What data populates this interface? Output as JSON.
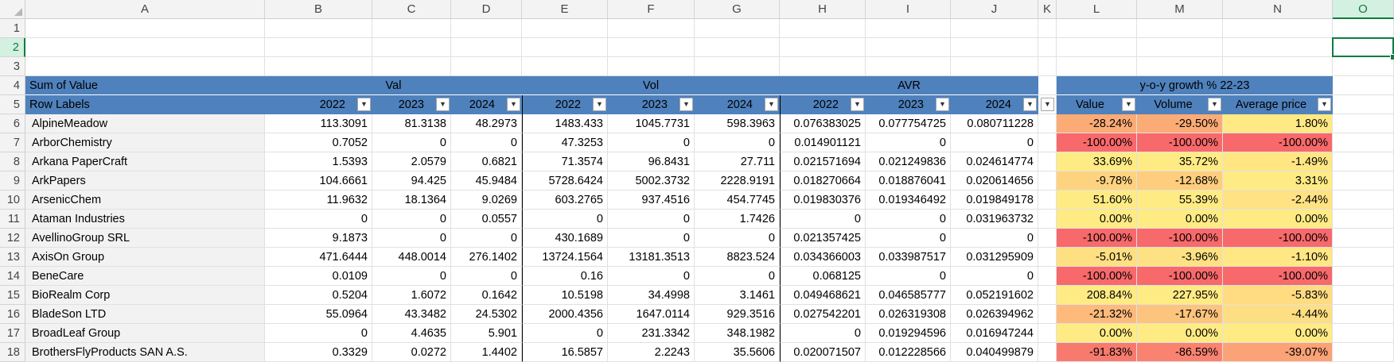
{
  "columns": [
    "A",
    "B",
    "C",
    "D",
    "E",
    "F",
    "G",
    "H",
    "I",
    "J",
    "K",
    "L",
    "M",
    "N",
    "O"
  ],
  "selected_column": "O",
  "selected_row": 2,
  "empty_rows": [
    1,
    2,
    3
  ],
  "pivot": {
    "corner_label": "Sum of Value",
    "row_labels_header": "Row Labels",
    "groups": {
      "val": "Val",
      "vol": "Vol",
      "avr": "AVR",
      "growth": "y-o-y growth % 22-23"
    },
    "years": [
      "2022",
      "2023",
      "2024",
      "2022",
      "2023",
      "2024",
      "2022",
      "2023",
      "2024"
    ],
    "growth_headers": [
      "Value",
      "Volume",
      "Average price"
    ],
    "filter_icon": "dropdown-arrow-icon",
    "rows": [
      {
        "n": "6",
        "label": "AlpineMeadow",
        "v": [
          "113.3091",
          "81.3138",
          "48.2973",
          "1483.433",
          "1045.7731",
          "598.3963",
          "0.076383025",
          "0.077754725",
          "0.080711228"
        ],
        "g": [
          "-28.24%",
          "-29.50%",
          "1.80%"
        ],
        "gc": [
          "#fbab76",
          "#fbab76",
          "#ffe984"
        ]
      },
      {
        "n": "7",
        "label": "ArborChemistry",
        "v": [
          "0.7052",
          "0",
          "0",
          "47.3253",
          "0",
          "0",
          "0.014901121",
          "0",
          "0"
        ],
        "g": [
          "-100.00%",
          "-100.00%",
          "-100.00%"
        ],
        "gc": [
          "#f8696b",
          "#f8696b",
          "#f8696b"
        ]
      },
      {
        "n": "8",
        "label": "Arkana PaperCraft",
        "v": [
          "1.5393",
          "2.0579",
          "0.6821",
          "71.3574",
          "96.8431",
          "27.711",
          "0.021571694",
          "0.021249836",
          "0.024614774"
        ],
        "g": [
          "33.69%",
          "35.72%",
          "-1.49%"
        ],
        "gc": [
          "#ffeb84",
          "#ffeb84",
          "#ffe683"
        ]
      },
      {
        "n": "9",
        "label": "ArkPapers",
        "v": [
          "104.6661",
          "94.425",
          "45.9484",
          "5728.6424",
          "5002.3732",
          "2228.9191",
          "0.018270664",
          "0.018876041",
          "0.020614656"
        ],
        "g": [
          "-9.78%",
          "-12.68%",
          "3.31%"
        ],
        "gc": [
          "#fed380",
          "#fecd7e",
          "#ffeb84"
        ]
      },
      {
        "n": "10",
        "label": "ArsenicChem",
        "v": [
          "11.9632",
          "18.1364",
          "9.0269",
          "603.2765",
          "937.4516",
          "454.7745",
          "0.019830376",
          "0.019346492",
          "0.019849178"
        ],
        "g": [
          "51.60%",
          "55.39%",
          "-2.44%"
        ],
        "gc": [
          "#ffeb84",
          "#ffeb84",
          "#ffe283"
        ]
      },
      {
        "n": "11",
        "label": "Ataman Industries",
        "v": [
          "0",
          "0",
          "0.0557",
          "0",
          "0",
          "1.7426",
          "0",
          "0",
          "0.031963732"
        ],
        "g": [
          "0.00%",
          "0.00%",
          "0.00%"
        ],
        "gc": [
          "#ffeb84",
          "#ffeb84",
          "#ffeb84"
        ]
      },
      {
        "n": "12",
        "label": "AvellinoGroup SRL",
        "v": [
          "9.1873",
          "0",
          "0",
          "430.1689",
          "0",
          "0",
          "0.021357425",
          "0",
          "0"
        ],
        "g": [
          "-100.00%",
          "-100.00%",
          "-100.00%"
        ],
        "gc": [
          "#f8696b",
          "#f8696b",
          "#f8696b"
        ]
      },
      {
        "n": "13",
        "label": "AxisOn Group",
        "v": [
          "471.6444",
          "448.0014",
          "276.1402",
          "13724.1564",
          "13181.3513",
          "8823.524",
          "0.034366003",
          "0.033987517",
          "0.031295909"
        ],
        "g": [
          "-5.01%",
          "-3.96%",
          "-1.10%"
        ],
        "gc": [
          "#fedf82",
          "#fee182",
          "#ffe783"
        ]
      },
      {
        "n": "14",
        "label": "BeneCare",
        "v": [
          "0.0109",
          "0",
          "0",
          "0.16",
          "0",
          "0",
          "0.068125",
          "0",
          "0"
        ],
        "g": [
          "-100.00%",
          "-100.00%",
          "-100.00%"
        ],
        "gc": [
          "#f8696b",
          "#f8696b",
          "#f8696b"
        ]
      },
      {
        "n": "15",
        "label": "BioRealm Corp",
        "v": [
          "0.5204",
          "1.6072",
          "0.1642",
          "10.5198",
          "34.4998",
          "3.1461",
          "0.049468621",
          "0.046585777",
          "0.052191602"
        ],
        "g": [
          "208.84%",
          "227.95%",
          "-5.83%"
        ],
        "gc": [
          "#ffeb84",
          "#ffeb84",
          "#ffdc81"
        ]
      },
      {
        "n": "16",
        "label": "BladeSon LTD",
        "v": [
          "55.0964",
          "43.3482",
          "24.5302",
          "2000.4356",
          "1647.0114",
          "929.3516",
          "0.027542201",
          "0.026319308",
          "0.026394962"
        ],
        "g": [
          "-21.32%",
          "-17.67%",
          "-4.44%"
        ],
        "gc": [
          "#fdba7b",
          "#fdc47d",
          "#fede82"
        ]
      },
      {
        "n": "17",
        "label": "BroadLeaf Group",
        "v": [
          "0",
          "4.4635",
          "5.901",
          "0",
          "231.3342",
          "348.1982",
          "0",
          "0.019294596",
          "0.016947244"
        ],
        "g": [
          "0.00%",
          "0.00%",
          "0.00%"
        ],
        "gc": [
          "#ffeb84",
          "#ffeb84",
          "#ffeb84"
        ]
      },
      {
        "n": "18",
        "label": "BrothersFlyProducts SAN A.S.",
        "v": [
          "0.3329",
          "0.0272",
          "1.4402",
          "16.5857",
          "2.2243",
          "35.5606",
          "0.020071507",
          "0.012228566",
          "0.040499879"
        ],
        "g": [
          "-91.83%",
          "-86.59%",
          "-39.07%"
        ],
        "gc": [
          "#f87a6e",
          "#f98370",
          "#fba276"
        ]
      }
    ]
  }
}
